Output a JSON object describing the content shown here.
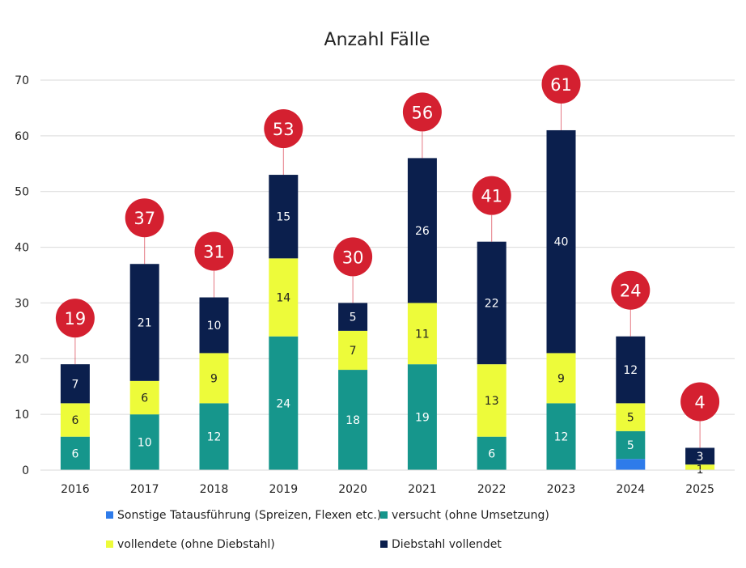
{
  "chart_data": {
    "type": "bar",
    "stacked": true,
    "title": "Anzahl Fälle",
    "categories": [
      "2016",
      "2017",
      "2018",
      "2019",
      "2020",
      "2021",
      "2022",
      "2023",
      "2024",
      "2025"
    ],
    "ylim": [
      0,
      70
    ],
    "yticks": [
      0,
      10,
      20,
      30,
      40,
      50,
      60,
      70
    ],
    "grid": true,
    "legend_position": "bottom",
    "series": [
      {
        "name": "Sonstige Tatausführung (Spreizen, Flexen etc.)",
        "color": "#2E7BEA",
        "values": [
          0,
          0,
          0,
          0,
          0,
          0,
          0,
          0,
          2,
          0
        ],
        "labels": [
          null,
          null,
          null,
          null,
          null,
          null,
          null,
          null,
          null,
          null
        ]
      },
      {
        "name": "versucht (ohne Umsetzung)",
        "color": "#16968C",
        "values": [
          6,
          10,
          12,
          24,
          18,
          19,
          6,
          12,
          5,
          0
        ],
        "labels": [
          "6",
          "10",
          "12",
          "24",
          "18",
          "19",
          "6",
          "12",
          "5",
          null
        ]
      },
      {
        "name": "vollendete (ohne Diebstahl)",
        "color": "#EDFB3A",
        "values": [
          6,
          6,
          9,
          14,
          7,
          11,
          13,
          9,
          5,
          1
        ],
        "labels": [
          "6",
          "6",
          "9",
          "14",
          "7",
          "11",
          "13",
          "9",
          "5",
          "1"
        ]
      },
      {
        "name": "Diebstahl vollendet",
        "color": "#0B1F4D",
        "values": [
          7,
          21,
          10,
          15,
          5,
          26,
          22,
          40,
          12,
          3
        ],
        "labels": [
          "7",
          "21",
          "10",
          "15",
          "5",
          "26",
          "22",
          "40",
          "12",
          "3"
        ]
      }
    ],
    "totals": [
      "19",
      "37",
      "31",
      "53",
      "30",
      "56",
      "41",
      "61",
      "24",
      "4"
    ],
    "total_bubble_color": "#D42030"
  }
}
